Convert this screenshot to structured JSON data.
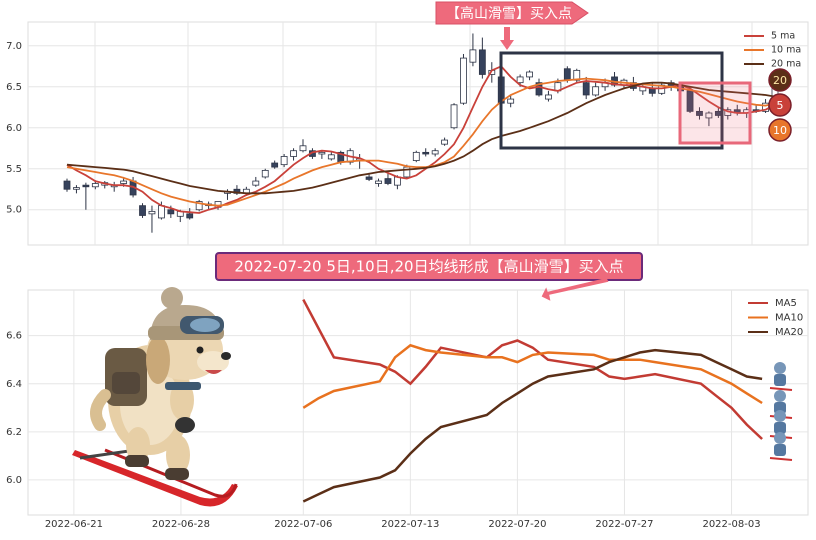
{
  "chart_data": [
    {
      "type": "candlestick",
      "annotation": "【高山滑雪】买入点",
      "open": [
        5.35,
        5.25,
        5.3,
        5.28,
        5.3,
        5.28,
        5.32,
        5.35,
        5.05,
        4.95,
        4.9,
        5.0,
        4.92,
        4.95,
        5.0,
        5.05,
        5.03,
        5.2,
        5.25,
        5.2,
        5.3,
        5.4,
        5.57,
        5.55,
        5.65,
        5.72,
        5.72,
        5.68,
        5.62,
        5.7,
        5.58,
        5.6,
        5.4,
        5.32,
        5.38,
        5.3,
        5.4,
        5.6,
        5.7,
        5.68,
        5.8,
        6.0,
        6.3,
        6.8,
        6.95,
        6.65,
        6.62,
        6.3,
        6.55,
        6.62,
        6.55,
        6.35,
        6.45,
        6.72,
        6.58,
        6.55,
        6.4,
        6.5,
        6.62,
        6.52,
        6.55,
        6.45,
        6.48,
        6.42,
        6.55,
        6.5,
        6.45,
        6.2,
        6.12,
        6.2,
        6.15,
        6.22,
        6.18,
        6.22,
        6.2,
        6.3
      ],
      "high": [
        5.38,
        5.3,
        5.33,
        5.36,
        5.35,
        5.34,
        5.4,
        5.4,
        5.08,
        5.05,
        5.1,
        5.05,
        5.0,
        5.02,
        5.12,
        5.1,
        5.1,
        5.25,
        5.3,
        5.28,
        5.4,
        5.5,
        5.6,
        5.68,
        5.75,
        5.86,
        5.75,
        5.72,
        5.7,
        5.72,
        5.75,
        5.68,
        5.45,
        5.38,
        5.45,
        5.42,
        5.55,
        5.72,
        5.75,
        5.75,
        5.88,
        6.3,
        6.9,
        7.15,
        7.1,
        6.8,
        6.7,
        6.4,
        6.65,
        6.7,
        6.6,
        6.45,
        6.6,
        6.75,
        6.72,
        6.62,
        6.55,
        6.6,
        6.68,
        6.6,
        6.62,
        6.52,
        6.55,
        6.55,
        6.58,
        6.55,
        6.5,
        6.25,
        6.2,
        6.25,
        6.25,
        6.28,
        6.25,
        6.28,
        6.35,
        6.6
      ],
      "low": [
        5.22,
        5.2,
        5.0,
        5.25,
        5.26,
        5.22,
        5.28,
        5.15,
        4.9,
        4.72,
        4.88,
        4.9,
        4.85,
        4.88,
        4.98,
        5.0,
        5.0,
        5.12,
        5.18,
        5.17,
        5.28,
        5.38,
        5.5,
        5.52,
        5.6,
        5.7,
        5.62,
        5.62,
        5.6,
        5.55,
        5.55,
        5.5,
        5.35,
        5.28,
        5.3,
        5.25,
        5.38,
        5.58,
        5.65,
        5.65,
        5.78,
        5.98,
        6.28,
        6.75,
        6.6,
        6.55,
        6.25,
        6.25,
        6.5,
        6.58,
        6.38,
        6.32,
        6.42,
        6.55,
        6.55,
        6.35,
        6.38,
        6.45,
        6.5,
        6.48,
        6.45,
        6.4,
        6.38,
        6.4,
        6.45,
        6.42,
        6.18,
        6.1,
        6.02,
        6.12,
        6.1,
        6.15,
        6.12,
        6.18,
        6.18,
        6.28
      ],
      "close": [
        5.25,
        5.27,
        5.28,
        5.32,
        5.33,
        5.3,
        5.35,
        5.18,
        4.93,
        4.98,
        5.05,
        4.95,
        4.98,
        4.9,
        5.1,
        5.07,
        5.1,
        5.22,
        5.2,
        5.25,
        5.35,
        5.48,
        5.52,
        5.65,
        5.72,
        5.78,
        5.65,
        5.7,
        5.67,
        5.58,
        5.72,
        5.62,
        5.37,
        5.35,
        5.32,
        5.4,
        5.52,
        5.7,
        5.68,
        5.72,
        5.85,
        6.28,
        6.85,
        6.95,
        6.65,
        6.7,
        6.3,
        6.35,
        6.62,
        6.68,
        6.4,
        6.4,
        6.55,
        6.58,
        6.7,
        6.4,
        6.5,
        6.55,
        6.52,
        6.58,
        6.48,
        6.5,
        6.42,
        6.52,
        6.5,
        6.45,
        6.2,
        6.15,
        6.18,
        6.15,
        6.22,
        6.18,
        6.22,
        6.2,
        6.3,
        6.55
      ],
      "up_color": "#ffffff",
      "down_color": "#36425c",
      "edge_color": "#2d3446",
      "series": [
        {
          "name": "5 ma",
          "color": "#c9413a",
          "values": [
            5.55,
            5.48,
            5.42,
            5.35,
            5.32,
            5.3,
            5.3,
            5.28,
            5.22,
            5.12,
            5.05,
            5.02,
            4.98,
            4.97,
            4.96,
            5.0,
            5.03,
            5.08,
            5.12,
            5.18,
            5.22,
            5.28,
            5.35,
            5.45,
            5.55,
            5.63,
            5.7,
            5.72,
            5.71,
            5.68,
            5.65,
            5.63,
            5.58,
            5.5,
            5.45,
            5.4,
            5.38,
            5.42,
            5.5,
            5.58,
            5.68,
            5.8,
            6.0,
            6.25,
            6.5,
            6.7,
            6.75,
            6.62,
            6.52,
            6.48,
            6.5,
            6.47,
            6.45,
            6.5,
            6.55,
            6.57,
            6.56,
            6.55,
            6.53,
            6.52,
            6.52,
            6.5,
            6.48,
            6.48,
            6.5,
            6.52,
            6.48,
            6.4,
            6.32,
            6.25,
            6.2,
            6.18,
            6.18,
            6.2,
            6.22,
            6.28
          ]
        },
        {
          "name": "10 ma",
          "color": "#e8762b",
          "values": [
            5.52,
            5.5,
            5.48,
            5.46,
            5.44,
            5.42,
            5.39,
            5.35,
            5.3,
            5.25,
            5.2,
            5.16,
            5.13,
            5.1,
            5.08,
            5.06,
            5.05,
            5.06,
            5.1,
            5.14,
            5.18,
            5.22,
            5.27,
            5.32,
            5.38,
            5.43,
            5.48,
            5.52,
            5.55,
            5.58,
            5.59,
            5.6,
            5.6,
            5.6,
            5.58,
            5.56,
            5.53,
            5.52,
            5.52,
            5.54,
            5.58,
            5.65,
            5.78,
            5.92,
            6.08,
            6.22,
            6.32,
            6.4,
            6.45,
            6.5,
            6.53,
            6.55,
            6.57,
            6.58,
            6.59,
            6.6,
            6.59,
            6.58,
            6.56,
            6.55,
            6.54,
            6.53,
            6.52,
            6.51,
            6.5,
            6.48,
            6.46,
            6.44,
            6.41,
            6.38,
            6.35,
            6.32,
            6.3,
            6.28,
            6.27,
            6.3
          ]
        },
        {
          "name": "20 ma",
          "color": "#5b2f17",
          "values": [
            5.55,
            5.54,
            5.53,
            5.52,
            5.51,
            5.5,
            5.49,
            5.47,
            5.44,
            5.41,
            5.38,
            5.35,
            5.32,
            5.29,
            5.27,
            5.25,
            5.23,
            5.22,
            5.21,
            5.2,
            5.2,
            5.2,
            5.21,
            5.22,
            5.23,
            5.25,
            5.27,
            5.3,
            5.33,
            5.36,
            5.39,
            5.42,
            5.44,
            5.46,
            5.47,
            5.48,
            5.49,
            5.5,
            5.51,
            5.53,
            5.56,
            5.6,
            5.65,
            5.72,
            5.8,
            5.86,
            5.9,
            5.93,
            5.96,
            6.0,
            6.04,
            6.08,
            6.13,
            6.18,
            6.24,
            6.3,
            6.35,
            6.4,
            6.44,
            6.48,
            6.51,
            6.54,
            6.55,
            6.55,
            6.54,
            6.52,
            6.5,
            6.48,
            6.46,
            6.45,
            6.44,
            6.43,
            6.42,
            6.41,
            6.4,
            6.38
          ]
        }
      ],
      "badges": [
        {
          "label": "20",
          "color": "#5b2f17",
          "text_color": "#ffe9a8"
        },
        {
          "label": "5",
          "color": "#c9413a",
          "text_color": "#ffffff"
        },
        {
          "label": "10",
          "color": "#e8762b",
          "text_color": "#ffffff"
        }
      ],
      "ylim": [
        4.57,
        7.29
      ],
      "yticks": [
        {
          "value": 5,
          "label": "5.0"
        },
        {
          "value": 5.5,
          "label": "5.5"
        },
        {
          "value": 6,
          "label": "6.0"
        },
        {
          "value": 6.5,
          "label": "6.5"
        },
        {
          "value": 7,
          "label": "7.0"
        }
      ],
      "grid": true,
      "legend": "upper right"
    },
    {
      "type": "line",
      "title": "2022-07-20 5日,10日,20日均线形成【高山滑雪】买入点",
      "x": [
        "2022-07-06",
        "2022-07-07",
        "2022-07-08",
        "2022-07-11",
        "2022-07-12",
        "2022-07-13",
        "2022-07-14",
        "2022-07-15",
        "2022-07-18",
        "2022-07-19",
        "2022-07-20",
        "2022-07-21",
        "2022-07-22",
        "2022-07-25",
        "2022-07-26",
        "2022-07-27",
        "2022-07-28",
        "2022-07-29",
        "2022-08-01",
        "2022-08-02",
        "2022-08-03",
        "2022-08-04",
        "2022-08-05"
      ],
      "series": [
        {
          "name": "MA5",
          "color": "#c23b33",
          "values": [
            6.75,
            6.63,
            6.51,
            6.48,
            6.45,
            6.4,
            6.47,
            6.55,
            6.51,
            6.56,
            6.58,
            6.55,
            6.5,
            6.47,
            6.43,
            6.42,
            6.43,
            6.44,
            6.4,
            6.35,
            6.3,
            6.23,
            6.17
          ]
        },
        {
          "name": "MA10",
          "color": "#e8721f",
          "values": [
            6.3,
            6.34,
            6.37,
            6.41,
            6.51,
            6.56,
            6.54,
            6.53,
            6.51,
            6.51,
            6.49,
            6.52,
            6.53,
            6.52,
            6.5,
            6.5,
            6.5,
            6.49,
            6.46,
            6.43,
            6.4,
            6.36,
            6.32
          ]
        },
        {
          "name": "MA20",
          "color": "#5b2f17",
          "values": [
            5.91,
            5.94,
            5.97,
            6.01,
            6.04,
            6.11,
            6.17,
            6.22,
            6.27,
            6.32,
            6.36,
            6.4,
            6.43,
            6.46,
            6.49,
            6.51,
            6.53,
            6.54,
            6.52,
            6.49,
            6.46,
            6.43,
            6.42
          ]
        }
      ],
      "xlim": [
        "2022-06-18",
        "2022-08-08"
      ],
      "xticks": [
        "2022-06-21",
        "2022-06-28",
        "2022-07-06",
        "2022-07-13",
        "2022-07-20",
        "2022-07-27",
        "2022-08-03"
      ],
      "ylim": [
        5.854,
        6.79
      ],
      "yticks": [
        {
          "value": 6,
          "label": "6.0"
        },
        {
          "value": 6.2,
          "label": "6.2"
        },
        {
          "value": 6.4,
          "label": "6.4"
        },
        {
          "value": 6.6,
          "label": "6.6"
        }
      ],
      "grid": true,
      "legend": "upper right"
    }
  ]
}
